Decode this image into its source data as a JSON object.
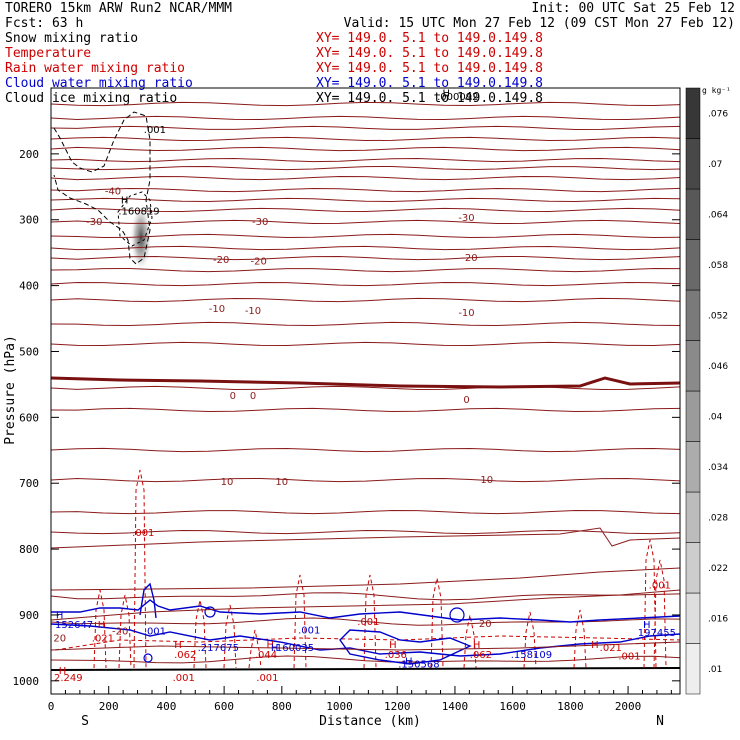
{
  "header": {
    "model": "TORERO   15km ARW    Run2    NCAR/MMM",
    "init": "Init: 00 UTC Sat 25 Feb 12",
    "fcst": "Fcst:    63 h",
    "valid": "Valid: 15 UTC Mon 27 Feb 12 (09 CST Mon 27 Feb 12)"
  },
  "legend": [
    {
      "label": "Snow mixing ratio",
      "xy": "XY= 149.0.  5.1 to 149.0.149.8",
      "color": "#000000"
    },
    {
      "label": "Temperature",
      "xy": "XY= 149.0.  5.1 to 149.0.149.8",
      "color": "#cc0000"
    },
    {
      "label": "Rain water mixing ratio",
      "xy": "XY= 149.0.  5.1 to 149.0.149.8",
      "color": "#cc0000"
    },
    {
      "label": "Cloud water mixing ratio",
      "xy": "XY= 149.0.  5.1 to 149.0.149.8",
      "color": "#0000cc"
    },
    {
      "label": "Cloud ice mixing ratio",
      "xy": "XY= 149.0.  5.1 to 149.0.149.8",
      "color": "#000000"
    }
  ],
  "chart_data": {
    "type": "cross-section",
    "xlabel": "Distance (km)",
    "ylabel": "Pressure (hPa)",
    "x_ticks": [
      0,
      200,
      400,
      600,
      800,
      1000,
      1200,
      1400,
      1600,
      1800,
      2000
    ],
    "y_ticks": [
      200,
      300,
      400,
      500,
      600,
      700,
      800,
      900,
      1000
    ],
    "xlim": [
      0,
      2180
    ],
    "ylim": [
      100,
      1020
    ],
    "endpoint_labels": {
      "left": "S",
      "right": "N"
    },
    "colorbar": {
      "unit": "g kg⁻¹",
      "levels": [
        0.01,
        0.016,
        0.022,
        0.028,
        0.034,
        0.04,
        0.046,
        0.052,
        0.058,
        0.064,
        0.07,
        0.076
      ],
      "tick_labels": [
        ".01",
        ".016",
        ".022",
        ".028",
        ".034",
        ".04",
        ".046",
        ".052",
        ".058",
        ".064",
        ".07",
        ".076"
      ]
    },
    "temperature_contours": [
      {
        "value": -30,
        "pressure": 305,
        "label": "-30"
      },
      {
        "value": -20,
        "pressure": 365,
        "label": "-20"
      },
      {
        "value": -10,
        "pressure": 440,
        "label": "-10"
      },
      {
        "value": 0,
        "pressure": 575,
        "label": "0"
      },
      {
        "value": 10,
        "pressure": 700,
        "label": "10"
      },
      {
        "value": 20,
        "pressure": 920,
        "label": "20"
      }
    ],
    "contour_labels": [
      {
        "text": ".001",
        "x": 360,
        "p": 168,
        "color": "#000000"
      },
      {
        "text": "-40",
        "x": 215,
        "p": 262,
        "color": "#8b1a1a"
      },
      {
        "text": "H",
        "x": 255,
        "p": 275,
        "color": "#000000"
      },
      {
        "text": ".160819",
        "x": 305,
        "p": 292,
        "color": "#000000"
      },
      {
        "text": "-30",
        "x": 150,
        "p": 308,
        "color": "#8b1a1a"
      },
      {
        "text": "-30",
        "x": 725,
        "p": 308,
        "color": "#8b1a1a"
      },
      {
        "text": "-30",
        "x": 1440,
        "p": 302,
        "color": "#8b1a1a"
      },
      {
        "text": "-20",
        "x": 590,
        "p": 366,
        "color": "#8b1a1a"
      },
      {
        "text": "-20",
        "x": 720,
        "p": 368,
        "color": "#8b1a1a"
      },
      {
        "text": "-20",
        "x": 1450,
        "p": 363,
        "color": "#8b1a1a"
      },
      {
        "text": "-10",
        "x": 575,
        "p": 440,
        "color": "#8b1a1a"
      },
      {
        "text": "-10",
        "x": 700,
        "p": 443,
        "color": "#8b1a1a"
      },
      {
        "text": "-10",
        "x": 1440,
        "p": 446,
        "color": "#8b1a1a"
      },
      {
        "text": "0",
        "x": 630,
        "p": 572,
        "color": "#8b1a1a"
      },
      {
        "text": "0",
        "x": 700,
        "p": 572,
        "color": "#8b1a1a"
      },
      {
        "text": "0",
        "x": 1440,
        "p": 578,
        "color": "#8b1a1a"
      },
      {
        "text": "10",
        "x": 610,
        "p": 703,
        "color": "#8b1a1a"
      },
      {
        "text": "10",
        "x": 800,
        "p": 703,
        "color": "#8b1a1a"
      },
      {
        "text": "10",
        "x": 1510,
        "p": 700,
        "color": "#8b1a1a"
      },
      {
        "text": "H",
        "x": 1370,
        "p": 113,
        "color": "#000000"
      },
      {
        "text": ".000092",
        "x": 1410,
        "p": 118,
        "color": "#000000"
      },
      {
        "text": ".001",
        "x": 320,
        "p": 780,
        "color": "#cc0000"
      },
      {
        "text": ".001",
        "x": 2110,
        "p": 860,
        "color": "#cc0000"
      },
      {
        "text": "H",
        "x": 30,
        "p": 905,
        "color": "#0000cc"
      },
      {
        "text": "152647",
        "x": 80,
        "p": 920,
        "color": "#0000cc"
      },
      {
        "text": "H",
        "x": 175,
        "p": 920,
        "color": "#cc0000"
      },
      {
        "text": "-20",
        "x": 240,
        "p": 930,
        "color": "#8b1a1a"
      },
      {
        "text": ".001",
        "x": 360,
        "p": 930,
        "color": "#0000cc"
      },
      {
        "text": ".001",
        "x": 1100,
        "p": 915,
        "color": "#cc0000"
      },
      {
        "text": ".001",
        "x": 895,
        "p": 928,
        "color": "#0000cc"
      },
      {
        "text": "20",
        "x": 1505,
        "p": 918,
        "color": "#8b1a1a"
      },
      {
        "text": "H",
        "x": 2065,
        "p": 920,
        "color": "#0000cc"
      },
      {
        "text": "197455",
        "x": 2100,
        "p": 932,
        "color": "#0000cc"
      },
      {
        "text": "20",
        "x": 30,
        "p": 940,
        "color": "#8b1a1a"
      },
      {
        "text": ".021",
        "x": 180,
        "p": 940,
        "color": "#cc0000"
      },
      {
        "text": "H",
        "x": 440,
        "p": 950,
        "color": "#cc0000"
      },
      {
        "text": ".217675",
        "x": 580,
        "p": 955,
        "color": "#0000cc"
      },
      {
        "text": "H",
        "x": 760,
        "p": 950,
        "color": "#cc0000"
      },
      {
        "text": "H",
        "x": 775,
        "p": 955,
        "color": "#0000cc"
      },
      {
        "text": ".160035",
        "x": 840,
        "p": 955,
        "color": "#0000cc"
      },
      {
        "text": "H",
        "x": 1185,
        "p": 950,
        "color": "#cc0000"
      },
      {
        "text": "H",
        "x": 1475,
        "p": 950,
        "color": "#cc0000"
      },
      {
        "text": "H",
        "x": 1885,
        "p": 950,
        "color": "#cc0000"
      },
      {
        "text": ".021",
        "x": 1940,
        "p": 955,
        "color": "#cc0000"
      },
      {
        "text": ".062",
        "x": 465,
        "p": 965,
        "color": "#cc0000"
      },
      {
        "text": ".044",
        "x": 745,
        "p": 965,
        "color": "#cc0000"
      },
      {
        "text": ".036",
        "x": 1195,
        "p": 965,
        "color": "#cc0000"
      },
      {
        "text": ".062",
        "x": 1490,
        "p": 965,
        "color": "#cc0000"
      },
      {
        "text": ".158109",
        "x": 1665,
        "p": 965,
        "color": "#0000cc"
      },
      {
        "text": ".001",
        "x": 2005,
        "p": 968,
        "color": "#cc0000"
      },
      {
        "text": "H",
        "x": 1240,
        "p": 975,
        "color": "#0000cc"
      },
      {
        "text": ".150568",
        "x": 1275,
        "p": 980,
        "color": "#0000cc"
      },
      {
        "text": "H",
        "x": 40,
        "p": 990,
        "color": "#cc0000"
      },
      {
        "text": "2.249",
        "x": 60,
        "p": 1000,
        "color": "#cc0000"
      },
      {
        "text": ".001",
        "x": 460,
        "p": 1000,
        "color": "#cc0000"
      },
      {
        "text": ".001",
        "x": 750,
        "p": 1000,
        "color": "#cc0000"
      }
    ]
  }
}
